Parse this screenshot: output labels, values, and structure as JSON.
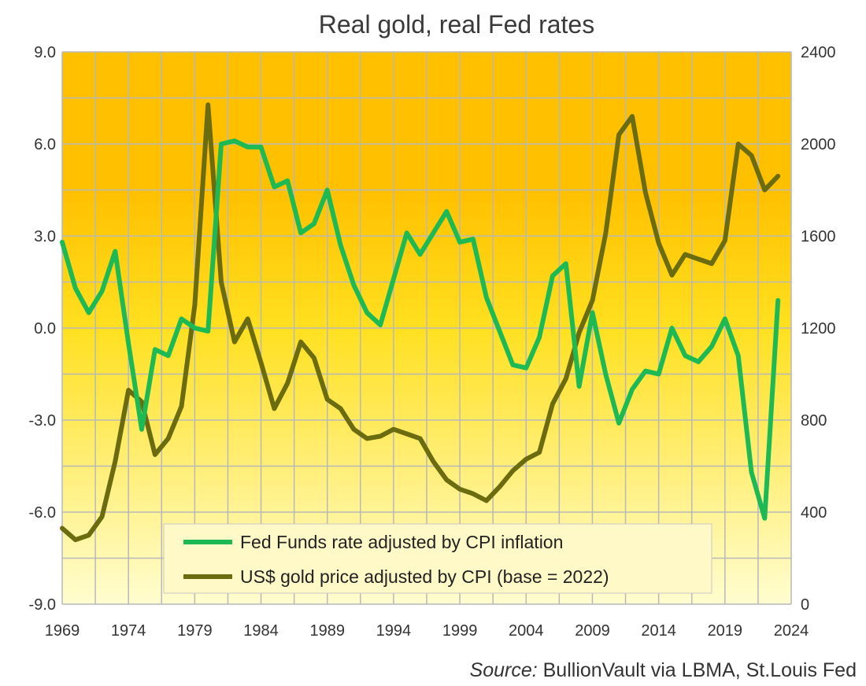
{
  "chart_data": {
    "type": "line",
    "title": "Real gold, real Fed rates",
    "source_label": "Source:",
    "source_text": " BullionVault  via LBMA, St.Louis Fed",
    "x_ticks": [
      "1969",
      "1974",
      "1979",
      "1984",
      "1989",
      "1994",
      "1999",
      "2004",
      "2009",
      "2014",
      "2019",
      "2024"
    ],
    "y_left_ticks": [
      "9.0",
      "6.0",
      "3.0",
      "0.0",
      "-3.0",
      "-6.0",
      "-9.0"
    ],
    "y_right_ticks": [
      "2400",
      "2000",
      "1600",
      "1200",
      "800",
      "400",
      "0"
    ],
    "y_left_lim": [
      -9,
      9
    ],
    "y_right_lim": [
      0,
      2400
    ],
    "x_lim": [
      1969,
      2024
    ],
    "grid": true,
    "legend_position": "bottom-center",
    "colors": {
      "bg_top": "#FFC000",
      "bg_mid": "#FFE020",
      "bg_bottom": "#FFFDD0",
      "grid": "#B8B8B8",
      "fed": "#1DB954",
      "gold": "#6B6B10"
    },
    "series": [
      {
        "name": "Fed Funds rate adjusted by CPI inflation",
        "axis": "left",
        "x": [
          1969,
          1970,
          1971,
          1972,
          1973,
          1974,
          1975,
          1976,
          1977,
          1978,
          1979,
          1980,
          1981,
          1982,
          1983,
          1984,
          1985,
          1986,
          1987,
          1988,
          1989,
          1990,
          1991,
          1992,
          1993,
          1994,
          1995,
          1996,
          1997,
          1998,
          1999,
          2000,
          2001,
          2002,
          2003,
          2004,
          2005,
          2006,
          2007,
          2008,
          2009,
          2010,
          2011,
          2012,
          2013,
          2014,
          2015,
          2016,
          2017,
          2018,
          2019,
          2020,
          2021,
          2022,
          2023
        ],
        "values": [
          2.8,
          1.3,
          0.5,
          1.2,
          2.5,
          -0.5,
          -3.3,
          -0.7,
          -0.9,
          0.3,
          0.0,
          -0.1,
          6.0,
          6.1,
          5.9,
          5.9,
          4.6,
          4.8,
          3.1,
          3.4,
          4.5,
          2.7,
          1.4,
          0.5,
          0.1,
          1.6,
          3.1,
          2.4,
          3.1,
          3.8,
          2.8,
          2.9,
          1.0,
          -0.1,
          -1.2,
          -1.3,
          -0.3,
          1.7,
          2.1,
          -1.9,
          0.5,
          -1.5,
          -3.1,
          -2.0,
          -1.4,
          -1.5,
          0.0,
          -0.9,
          -1.1,
          -0.6,
          0.3,
          -0.9,
          -4.7,
          -6.2,
          0.9
        ]
      },
      {
        "name": "US$ gold price adjusted by CPI (base = 2022)",
        "axis": "right",
        "x": [
          1969,
          1970,
          1971,
          1972,
          1973,
          1974,
          1975,
          1976,
          1977,
          1978,
          1979,
          1980,
          1981,
          1982,
          1983,
          1984,
          1985,
          1986,
          1987,
          1988,
          1989,
          1990,
          1991,
          1992,
          1993,
          1994,
          1995,
          1996,
          1997,
          1998,
          1999,
          2000,
          2001,
          2002,
          2003,
          2004,
          2005,
          2006,
          2007,
          2008,
          2009,
          2010,
          2011,
          2012,
          2013,
          2014,
          2015,
          2016,
          2017,
          2018,
          2019,
          2020,
          2021,
          2022,
          2023
        ],
        "values": [
          330,
          280,
          300,
          380,
          620,
          930,
          880,
          650,
          720,
          860,
          1300,
          2170,
          1400,
          1140,
          1240,
          1050,
          850,
          960,
          1140,
          1070,
          890,
          850,
          760,
          720,
          730,
          760,
          740,
          720,
          620,
          540,
          500,
          480,
          450,
          510,
          580,
          630,
          660,
          870,
          980,
          1180,
          1320,
          1610,
          2040,
          2120,
          1790,
          1570,
          1430,
          1520,
          1500,
          1480,
          1580,
          2000,
          1950,
          1800,
          1860
        ]
      }
    ]
  }
}
